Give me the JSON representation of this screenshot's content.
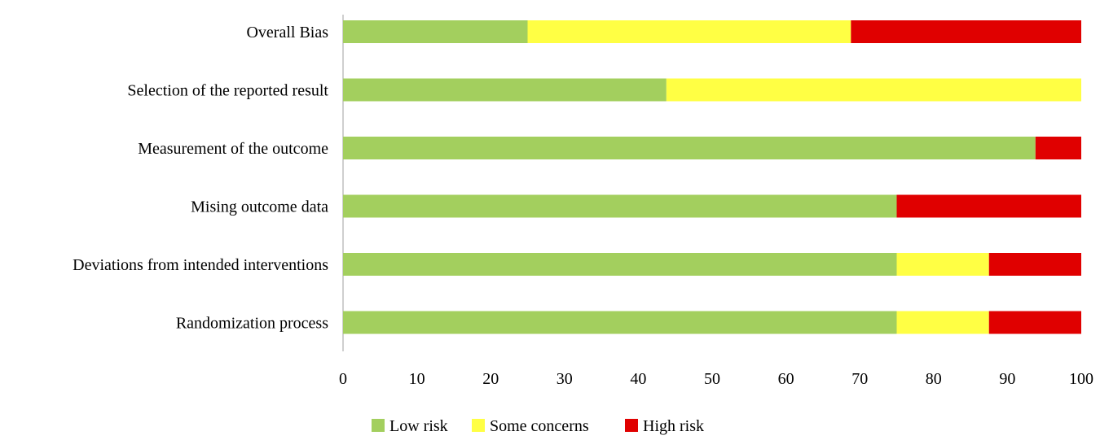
{
  "chart_data": {
    "type": "bar",
    "orientation": "horizontal",
    "stacked": true,
    "categories": [
      "Overall Bias",
      "Selection of the reported result",
      "Measurement of the outcome",
      "Mising outcome data",
      "Deviations from intended interventions",
      "Randomization process"
    ],
    "series": [
      {
        "name": "Low risk",
        "color": "#a3cf5e",
        "values": [
          25,
          43.8,
          93.8,
          75,
          75,
          75
        ]
      },
      {
        "name": "Some concerns",
        "color": "#ffff44",
        "values": [
          43.8,
          56.2,
          0,
          0,
          12.5,
          12.5
        ]
      },
      {
        "name": "High risk",
        "color": "#e00000",
        "values": [
          31.2,
          0,
          6.2,
          25,
          12.5,
          12.5
        ]
      }
    ],
    "xlim": [
      0,
      100
    ],
    "xticks": [
      "0",
      "10",
      "20",
      "30",
      "40",
      "50",
      "60",
      "70",
      "80",
      "90",
      "100"
    ],
    "title": "",
    "xlabel": "",
    "ylabel": "",
    "grid": false,
    "legend": "bottom"
  }
}
